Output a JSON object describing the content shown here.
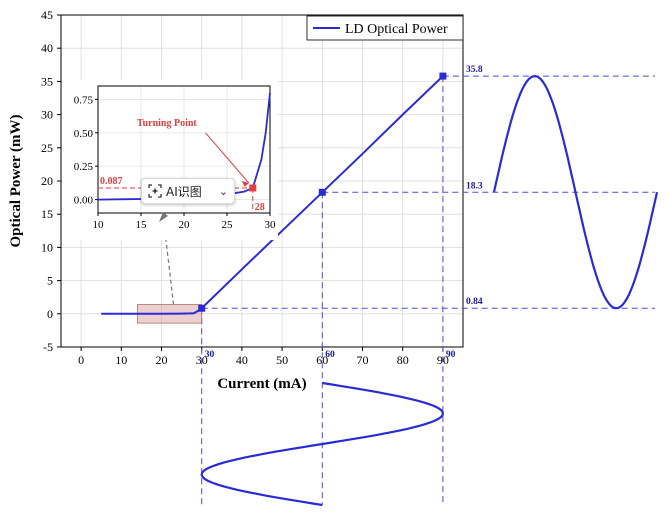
{
  "chart_data": [
    {
      "type": "line",
      "role": "main",
      "xlabel": "Current (mA)",
      "ylabel": "Optical Power (mW)",
      "xlim": [
        -5,
        95
      ],
      "ylim": [
        -5,
        45
      ],
      "x_ticks": [
        0,
        10,
        20,
        30,
        40,
        50,
        60,
        70,
        80,
        90
      ],
      "y_ticks": [
        -5,
        0,
        5,
        10,
        15,
        20,
        25,
        30,
        35,
        40,
        45
      ],
      "grid": true,
      "legend": "top-right",
      "series": [
        {
          "name": "LD Optical Power",
          "color": "#2b2bd6",
          "x": [
            5,
            10,
            15,
            20,
            25,
            27,
            28,
            29,
            30,
            40,
            50,
            60,
            70,
            80,
            90
          ],
          "y": [
            0,
            0,
            0,
            0.01,
            0.03,
            0.06,
            0.087,
            0.4,
            0.84,
            6.7,
            12.5,
            18.3,
            24.1,
            30.0,
            35.8
          ]
        }
      ],
      "markers": [
        {
          "x": 30,
          "y": 0.84,
          "label": "0.84",
          "xlabel": "30"
        },
        {
          "x": 60,
          "y": 18.3,
          "label": "18.3",
          "xlabel": "60"
        },
        {
          "x": 90,
          "y": 35.8,
          "label": "35.8",
          "xlabel": "90"
        }
      ],
      "highlight_range_x": [
        14,
        30
      ]
    },
    {
      "type": "line",
      "role": "inset",
      "xlim": [
        10,
        30
      ],
      "ylim": [
        -0.1,
        0.85
      ],
      "x_ticks": [
        10,
        15,
        20,
        25,
        30
      ],
      "y_ticks": [
        0.0,
        0.25,
        0.5,
        0.75
      ],
      "x": [
        10,
        15,
        20,
        22,
        25,
        27,
        28,
        29,
        29.5,
        30
      ],
      "y": [
        0.0,
        0.005,
        0.012,
        0.02,
        0.04,
        0.06,
        0.087,
        0.3,
        0.5,
        0.8
      ],
      "turning_point": {
        "x": 28,
        "y": 0.087,
        "label": "Turning Point",
        "y_label": "0.087",
        "x_label": "28"
      }
    }
  ],
  "overlay": {
    "ai_button_label": "AI识图",
    "ai_button_icon": "ai-scan-icon",
    "chevron_icon": "chevron-down-icon"
  },
  "colors": {
    "curve": "#2b2bd6",
    "dashed": "#4a4ae0",
    "turning": "#e04040",
    "label_blue": "#1a1aa8"
  }
}
